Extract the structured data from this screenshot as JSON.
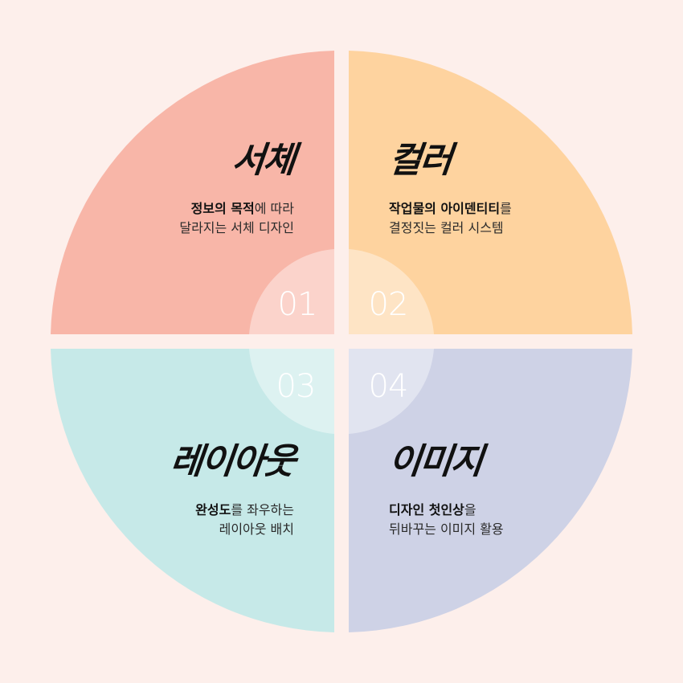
{
  "colors": {
    "background": "#fdefeb",
    "q1": "#f8b6a8",
    "q2": "#fed39f",
    "q3": "#c6e9e8",
    "q4": "#ced2e6"
  },
  "quadrants": [
    {
      "number": "01",
      "title": "서체",
      "desc_bold": "정보의 목적",
      "desc_rest": "에 따라",
      "desc_line2": "달라지는 서체 디자인"
    },
    {
      "number": "02",
      "title": "컬러",
      "desc_bold": "작업물의 아이덴티티",
      "desc_rest": "를",
      "desc_line2": "결정짓는 컬러 시스템"
    },
    {
      "number": "03",
      "title": "레이아웃",
      "desc_bold": "완성도",
      "desc_rest": "를 좌우하는",
      "desc_line2": "레이아웃 배치"
    },
    {
      "number": "04",
      "title": "이미지",
      "desc_bold": "디자인 첫인상",
      "desc_rest": "을",
      "desc_line2": "뒤바꾸는 이미지 활용"
    }
  ]
}
